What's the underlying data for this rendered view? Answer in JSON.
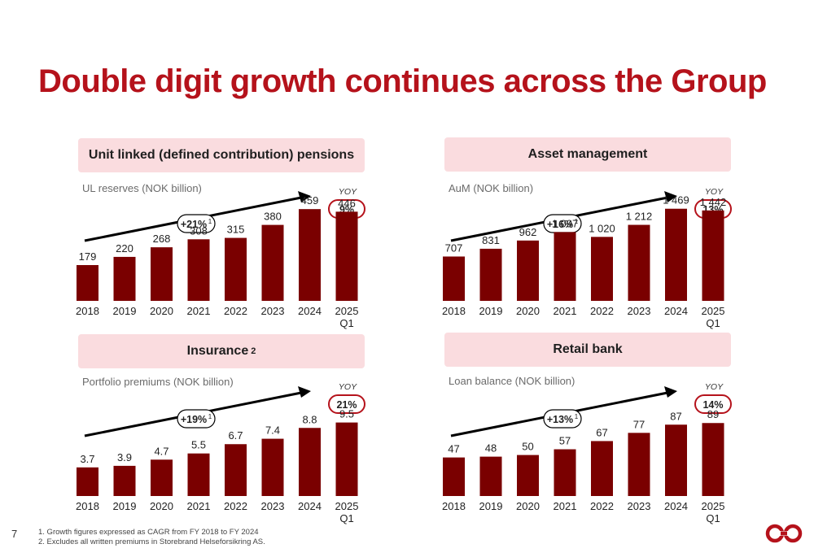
{
  "title": "Double digit growth continues across the Group",
  "page_number": "7",
  "footnotes": [
    "1. Growth figures expressed as CAGR from FY 2018 to FY 2024",
    "2. Excludes all written premiums in Storebrand Helseforsikring AS."
  ],
  "colors": {
    "accent": "#b5121b",
    "bar": "#7a0000",
    "header_bg": "#fadcdf"
  },
  "logo": {
    "icon": "storebrand-logo-icon"
  },
  "chart_data": [
    {
      "type": "bar",
      "title": "Unit linked (defined contribution) pensions",
      "title_sup": "",
      "ylabel": "UL reserves (NOK billion)",
      "categories": [
        "2018",
        "2019",
        "2020",
        "2021",
        "2022",
        "2023",
        "2024",
        "2025"
      ],
      "category_sublabels": [
        "",
        "",
        "",
        "",
        "",
        "",
        "",
        "Q1"
      ],
      "values": [
        179,
        220,
        268,
        308,
        315,
        380,
        459,
        446
      ],
      "value_labels": [
        "179",
        "220",
        "268",
        "308",
        "315",
        "380",
        "459",
        "446"
      ],
      "ylim": [
        0,
        480
      ],
      "cagr": "+21%",
      "cagr_sup": "1",
      "yoy_label": "YOY",
      "yoy": "9%"
    },
    {
      "type": "bar",
      "title": "Asset management",
      "title_sup": "",
      "ylabel": "AuM (NOK billion)",
      "categories": [
        "2018",
        "2019",
        "2020",
        "2021",
        "2022",
        "2023",
        "2024",
        "2025"
      ],
      "category_sublabels": [
        "",
        "",
        "",
        "",
        "",
        "",
        "",
        "Q1"
      ],
      "values": [
        707,
        831,
        962,
        1097,
        1020,
        1212,
        1469,
        1442
      ],
      "value_labels": [
        "707",
        "831",
        "962",
        "1 097",
        "1 020",
        "1 212",
        "1 469",
        "1 442"
      ],
      "ylim": [
        0,
        1530
      ],
      "cagr": "+16%",
      "cagr_sup": "1",
      "yoy_label": "YOY",
      "yoy": "13%"
    },
    {
      "type": "bar",
      "title": "Insurance",
      "title_sup": "2",
      "ylabel": "Portfolio premiums (NOK billion)",
      "categories": [
        "2018",
        "2019",
        "2020",
        "2021",
        "2022",
        "2023",
        "2024",
        "2025"
      ],
      "category_sublabels": [
        "",
        "",
        "",
        "",
        "",
        "",
        "",
        "Q1"
      ],
      "values": [
        3.7,
        3.9,
        4.7,
        5.5,
        6.7,
        7.4,
        8.8,
        9.5
      ],
      "value_labels": [
        "3.7",
        "3.9",
        "4.7",
        "5.5",
        "6.7",
        "7.4",
        "8.8",
        "9.5"
      ],
      "ylim": [
        0,
        12.4
      ],
      "cagr": "+19%",
      "cagr_sup": "1",
      "yoy_label": "YOY",
      "yoy": "21%"
    },
    {
      "type": "bar",
      "title": "Retail bank",
      "title_sup": "",
      "ylabel": "Loan balance (NOK billion)",
      "categories": [
        "2018",
        "2019",
        "2020",
        "2021",
        "2022",
        "2023",
        "2024",
        "2025"
      ],
      "category_sublabels": [
        "",
        "",
        "",
        "",
        "",
        "",
        "",
        "Q1"
      ],
      "values": [
        47,
        48,
        50,
        57,
        67,
        77,
        87,
        89
      ],
      "value_labels": [
        "47",
        "48",
        "50",
        "57",
        "67",
        "77",
        "87",
        "89"
      ],
      "ylim": [
        0,
        117
      ],
      "cagr": "+13%",
      "cagr_sup": "1",
      "yoy_label": "YOY",
      "yoy": "14%"
    }
  ]
}
